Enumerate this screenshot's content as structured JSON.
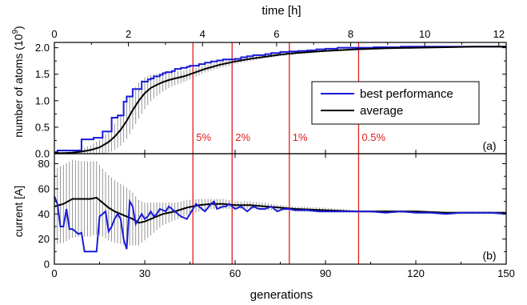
{
  "figure": {
    "top_axis_label": "time [h]",
    "bottom_axis_label": "generations"
  },
  "colors": {
    "best": "#1a1ad8",
    "average": "#000000",
    "error_bars": "#8a8a8a",
    "markers": "#e31a1c",
    "frame": "#000000"
  },
  "chart_data": [
    {
      "id": "a",
      "type": "line",
      "panel_label": "(a)",
      "ylabel": "number of atoms (10^9)",
      "ylabel_parts": {
        "base": "number of atoms (10",
        "sup": "9",
        "end": ")"
      },
      "xlim": [
        0,
        150
      ],
      "ylim": [
        0,
        2.1
      ],
      "yticks": [
        "0.0",
        "0.5",
        "1.0",
        "1.5",
        "2.0"
      ],
      "yticks_values": [
        0,
        0.5,
        1.0,
        1.5,
        2.0
      ],
      "top_xlim": [
        0,
        12.2
      ],
      "top_xticks": [
        "0",
        "2",
        "4",
        "6",
        "8",
        "10",
        "12"
      ],
      "top_xticks_values": [
        0,
        2,
        4,
        6,
        8,
        10,
        12
      ],
      "legend": {
        "position": "center-right",
        "entries": [
          "best performance",
          "average"
        ]
      },
      "vertical_lines": [
        {
          "x": 46,
          "label": "5%"
        },
        {
          "x": 59,
          "label": "2%"
        },
        {
          "x": 78,
          "label": "1%"
        },
        {
          "x": 101,
          "label": "0.5%"
        }
      ],
      "series": [
        {
          "name": "best performance",
          "step": true,
          "x": [
            0,
            1,
            8,
            9,
            12,
            13,
            15,
            16,
            17,
            19,
            20,
            21,
            22,
            23,
            24,
            25,
            26,
            27,
            28,
            29,
            30,
            31,
            32,
            33,
            34,
            35,
            36,
            37,
            38,
            39,
            40,
            41,
            42,
            43,
            44,
            45,
            46,
            48,
            50,
            52,
            54,
            56,
            58,
            60,
            62,
            64,
            66,
            68,
            70,
            72,
            75,
            78,
            81,
            84,
            87,
            90,
            94,
            98,
            102,
            106,
            110,
            115,
            120,
            125,
            130,
            135,
            140,
            145,
            150
          ],
          "y": [
            0.03,
            0.06,
            0.06,
            0.27,
            0.27,
            0.3,
            0.3,
            0.42,
            0.42,
            0.68,
            0.68,
            0.72,
            0.72,
            0.98,
            1.08,
            1.08,
            1.22,
            1.22,
            1.22,
            1.36,
            1.36,
            1.4,
            1.42,
            1.46,
            1.46,
            1.49,
            1.52,
            1.54,
            1.54,
            1.56,
            1.6,
            1.6,
            1.62,
            1.62,
            1.64,
            1.66,
            1.66,
            1.69,
            1.72,
            1.74,
            1.76,
            1.78,
            1.78,
            1.79,
            1.82,
            1.84,
            1.86,
            1.86,
            1.88,
            1.9,
            1.92,
            1.93,
            1.94,
            1.95,
            1.97,
            1.98,
            2.0,
            2.0,
            2.0,
            2.01,
            2.01,
            2.02,
            2.02,
            2.02,
            2.02,
            2.02,
            2.02,
            2.02,
            2.02
          ]
        },
        {
          "name": "average",
          "x": [
            0,
            3,
            6,
            9,
            12,
            15,
            18,
            20,
            22,
            24,
            26,
            28,
            30,
            32,
            34,
            36,
            38,
            40,
            43,
            46,
            50,
            55,
            60,
            65,
            70,
            75,
            80,
            90,
            100,
            110,
            120,
            130,
            140,
            150
          ],
          "y": [
            0.01,
            0.01,
            0.02,
            0.04,
            0.07,
            0.12,
            0.22,
            0.32,
            0.45,
            0.62,
            0.82,
            1.0,
            1.14,
            1.24,
            1.3,
            1.35,
            1.39,
            1.42,
            1.46,
            1.52,
            1.6,
            1.68,
            1.74,
            1.79,
            1.83,
            1.87,
            1.9,
            1.94,
            1.97,
            1.99,
            2.0,
            2.01,
            2.02,
            2.02
          ],
          "error": [
            0.01,
            0.02,
            0.04,
            0.06,
            0.09,
            0.14,
            0.2,
            0.25,
            0.3,
            0.34,
            0.36,
            0.34,
            0.3,
            0.25,
            0.21,
            0.18,
            0.15,
            0.13,
            0.11,
            0.09,
            0.07,
            0.06,
            0.05,
            0.04,
            0.03,
            0.03,
            0.03,
            0.02,
            0.02,
            0.02,
            0.01,
            0.01,
            0.01,
            0.01
          ]
        }
      ]
    },
    {
      "id": "b",
      "type": "line",
      "panel_label": "(b)",
      "ylabel": "current [A]",
      "xlim": [
        0,
        150
      ],
      "ylim": [
        0,
        88
      ],
      "yticks": [
        "0",
        "20",
        "40",
        "60",
        "80"
      ],
      "yticks_values": [
        0,
        20,
        40,
        60,
        80
      ],
      "xticks": [
        "0",
        "30",
        "60",
        "90",
        "120",
        "150"
      ],
      "xticks_values": [
        0,
        30,
        60,
        90,
        120,
        150
      ],
      "series": [
        {
          "name": "best performance",
          "x": [
            0,
            1,
            2,
            3,
            4,
            5,
            6,
            7,
            8,
            9,
            10,
            11,
            12,
            13,
            14,
            15,
            16,
            17,
            18,
            19,
            20,
            21,
            22,
            23,
            24,
            25,
            26,
            27,
            28,
            29,
            30,
            31,
            32,
            33,
            34,
            35,
            36,
            37,
            38,
            40,
            42,
            44,
            45,
            46,
            47,
            48,
            50,
            52,
            53,
            54,
            56,
            57,
            58,
            60,
            62,
            64,
            66,
            68,
            70,
            72,
            74,
            76,
            78,
            80,
            84,
            88,
            92,
            96,
            100,
            105,
            110,
            115,
            120,
            125,
            130,
            135,
            140,
            145,
            150
          ],
          "y": [
            54,
            48,
            30,
            30,
            44,
            28,
            28,
            26,
            24,
            25,
            10,
            10,
            10,
            10,
            10,
            38,
            40,
            42,
            26,
            30,
            36,
            40,
            36,
            20,
            12,
            50,
            46,
            32,
            36,
            40,
            36,
            38,
            42,
            38,
            40,
            44,
            43,
            42,
            46,
            42,
            38,
            36,
            40,
            44,
            48,
            46,
            42,
            48,
            50,
            44,
            46,
            46,
            48,
            44,
            46,
            42,
            46,
            44,
            44,
            46,
            42,
            44,
            44,
            43,
            43,
            42,
            42,
            42,
            42,
            42,
            41,
            42,
            41,
            41,
            40,
            41,
            41,
            41,
            40
          ]
        },
        {
          "name": "average",
          "x": [
            0,
            3,
            6,
            9,
            12,
            14,
            16,
            18,
            20,
            22,
            24,
            26,
            28,
            30,
            33,
            36,
            40,
            44,
            48,
            52,
            56,
            60,
            65,
            70,
            75,
            80,
            90,
            100,
            110,
            120,
            130,
            140,
            150
          ],
          "y": [
            46,
            48,
            52,
            52,
            52,
            53,
            49,
            45,
            42,
            40,
            38,
            36,
            33,
            34,
            37,
            40,
            42,
            45,
            47,
            48,
            48,
            47,
            47,
            46,
            45,
            44,
            43,
            42,
            42,
            42,
            41,
            41,
            41
          ],
          "error": [
            30,
            31,
            31,
            30,
            30,
            29,
            27,
            26,
            25,
            24,
            23,
            21,
            18,
            15,
            12,
            9,
            7,
            6,
            5,
            4,
            4,
            3,
            3,
            3,
            2,
            2,
            2,
            1,
            1,
            1,
            1,
            1,
            1
          ]
        }
      ]
    }
  ]
}
